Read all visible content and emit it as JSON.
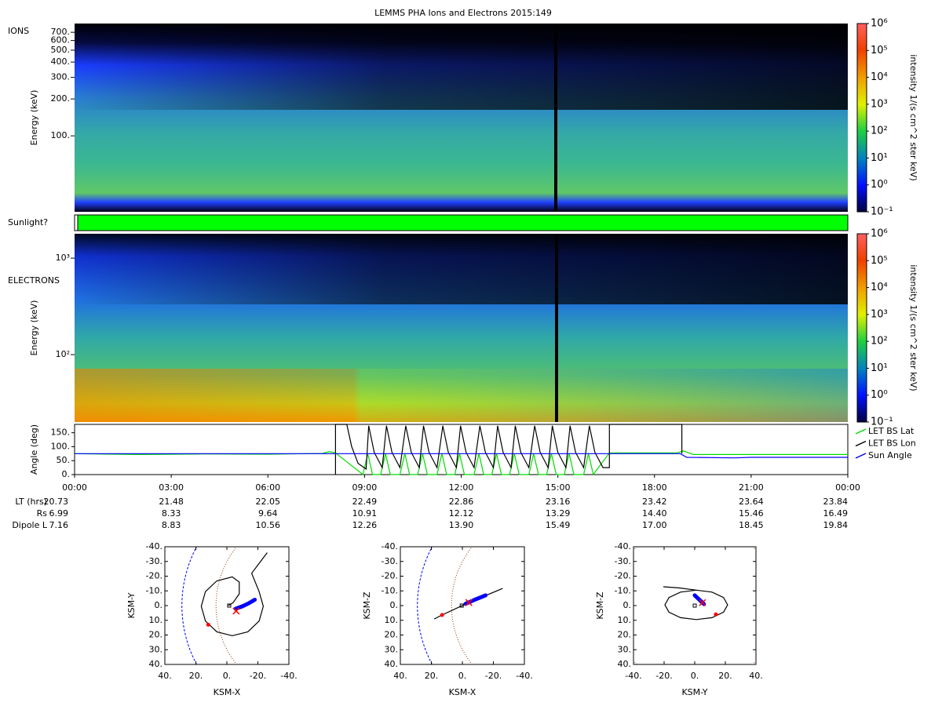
{
  "title": "LEMMS PHA Ions and Electrons  2015:149",
  "chart_data": [
    {
      "type": "spectrogram",
      "label": "IONS",
      "ylabel": "Energy (keV)",
      "log_y": true,
      "ylim": [
        24,
        825
      ],
      "yticks": [
        {
          "value": 100,
          "label": "100."
        },
        {
          "value": 200,
          "label": "200."
        },
        {
          "value": 300,
          "label": "300."
        },
        {
          "value": 400,
          "label": "400."
        },
        {
          "value": 500,
          "label": "500."
        },
        {
          "value": 600,
          "label": "600."
        },
        {
          "value": 700,
          "label": "700."
        }
      ],
      "colorbar": {
        "label": "intensity 1/(s cm^2 ster keV)",
        "log": true,
        "lim": [
          0.1,
          1000000
        ],
        "ticks": [
          {
            "value": 0.1,
            "label": "10⁻¹"
          },
          {
            "value": 1,
            "label": "10⁰"
          },
          {
            "value": 10,
            "label": "10¹"
          },
          {
            "value": 100,
            "label": "10²"
          },
          {
            "value": 1000,
            "label": "10³"
          },
          {
            "value": 10000,
            "label": "10⁴"
          },
          {
            "value": 100000,
            "label": "10⁵"
          },
          {
            "value": 1000000,
            "label": "10⁶"
          }
        ]
      }
    },
    {
      "type": "strip",
      "label": "Sunlight?",
      "color": "#00ff00"
    },
    {
      "type": "spectrogram",
      "label": "ELECTRONS",
      "ylabel": "Energy (keV)",
      "log_y": true,
      "ylim": [
        20,
        1790
      ],
      "yticks": [
        {
          "value": 100,
          "label": "10²"
        },
        {
          "value": 1000,
          "label": "10³"
        }
      ],
      "colorbar": {
        "label": "intensity 1/(s cm^2 ster keV)",
        "log": true,
        "lim": [
          0.1,
          1000000
        ],
        "ticks": [
          {
            "value": 0.1,
            "label": "10⁻¹"
          },
          {
            "value": 1,
            "label": "10⁰"
          },
          {
            "value": 10,
            "label": "10¹"
          },
          {
            "value": 100,
            "label": "10²"
          },
          {
            "value": 1000,
            "label": "10³"
          },
          {
            "value": 10000,
            "label": "10⁴"
          },
          {
            "value": 100000,
            "label": "10⁵"
          },
          {
            "value": 1000000,
            "label": "10⁶"
          }
        ]
      }
    },
    {
      "type": "line",
      "ylabel": "Angle (deg)",
      "xlim": [
        0,
        24
      ],
      "ylim": [
        0,
        180
      ],
      "xticks": [
        {
          "value": 0,
          "label": "00:00"
        },
        {
          "value": 3,
          "label": "03:00"
        },
        {
          "value": 6,
          "label": "06:00"
        },
        {
          "value": 9,
          "label": "09:00"
        },
        {
          "value": 12,
          "label": "12:00"
        },
        {
          "value": 15,
          "label": "15:00"
        },
        {
          "value": 18,
          "label": "18:00"
        },
        {
          "value": 21,
          "label": "21:00"
        },
        {
          "value": 24,
          "label": "00:00"
        }
      ],
      "yticks": [
        {
          "value": 0,
          "label": "0."
        },
        {
          "value": 50,
          "label": "50."
        },
        {
          "value": 100,
          "label": "100."
        },
        {
          "value": 150,
          "label": "150."
        }
      ],
      "legend": "right",
      "series": [
        {
          "name": "LET BS Lat",
          "color": "#00dd00",
          "x": [
            0,
            2,
            4,
            6,
            7.7,
            7.9,
            8.1,
            8.95,
            9.1,
            9.25,
            9.5,
            9.65,
            9.8,
            10.1,
            10.25,
            10.4,
            10.65,
            10.8,
            10.95,
            11.25,
            11.4,
            11.55,
            11.8,
            11.95,
            12.1,
            12.4,
            12.55,
            12.7,
            12.95,
            13.1,
            13.25,
            13.5,
            13.65,
            13.8,
            14.1,
            14.25,
            14.4,
            14.65,
            14.8,
            14.95,
            15.2,
            15.35,
            15.5,
            15.8,
            15.95,
            16.1,
            16.6,
            18.7,
            18.9,
            19.2,
            24
          ],
          "values": [
            75,
            72,
            74,
            73,
            76,
            82,
            78,
            0,
            75,
            0,
            0,
            75,
            0,
            0,
            75,
            0,
            0,
            75,
            0,
            0,
            75,
            0,
            0,
            75,
            0,
            0,
            75,
            0,
            0,
            75,
            0,
            0,
            75,
            0,
            0,
            75,
            0,
            0,
            75,
            0,
            0,
            75,
            0,
            0,
            75,
            0,
            78,
            78,
            85,
            72,
            72
          ]
        },
        {
          "name": "LET BS Lon",
          "color": "#000000",
          "x": [
            8.1,
            8.1,
            8.45,
            8.6,
            8.8,
            9.05,
            9.13,
            9.3,
            9.55,
            9.68,
            9.85,
            10.1,
            10.28,
            10.45,
            10.7,
            10.83,
            11.0,
            11.25,
            11.43,
            11.6,
            11.85,
            11.98,
            12.15,
            12.4,
            12.58,
            12.75,
            13.0,
            13.13,
            13.3,
            13.55,
            13.68,
            13.85,
            14.1,
            14.28,
            14.45,
            14.7,
            14.83,
            15.0,
            15.25,
            15.38,
            15.55,
            15.8,
            15.98,
            16.15,
            16.4,
            16.6,
            16.6,
            18.85,
            18.85
          ],
          "values": [
            0,
            180,
            180,
            100,
            40,
            20,
            175,
            80,
            25,
            175,
            80,
            25,
            175,
            80,
            25,
            175,
            80,
            25,
            175,
            80,
            25,
            175,
            80,
            25,
            175,
            80,
            25,
            175,
            80,
            25,
            175,
            80,
            25,
            175,
            80,
            25,
            175,
            80,
            25,
            175,
            80,
            25,
            175,
            80,
            25,
            25,
            180,
            180,
            75
          ]
        },
        {
          "name": "Sun Angle",
          "color": "#0000ff",
          "x": [
            0,
            8,
            18.8,
            19.0,
            20.5,
            21,
            24
          ],
          "values": [
            75,
            75,
            75,
            62,
            60,
            62,
            62
          ]
        }
      ],
      "rows": [
        {
          "name": "LT (hrs)",
          "values": [
            "20.73",
            "21.48",
            "22.05",
            "22.49",
            "22.86",
            "23.16",
            "23.42",
            "23.64",
            "23.84"
          ]
        },
        {
          "name": "Rs",
          "values": [
            "6.99",
            "8.33",
            "9.64",
            "10.91",
            "12.12",
            "13.29",
            "14.40",
            "15.46",
            "16.49"
          ]
        },
        {
          "name": "Dipole L",
          "values": [
            "7.16",
            "8.83",
            "10.56",
            "12.26",
            "13.90",
            "15.49",
            "17.00",
            "18.45",
            "19.84"
          ]
        }
      ]
    },
    {
      "type": "orbit",
      "xlabel": "KSM-X",
      "ylabel": "KSM-Y",
      "xlim": [
        40,
        -40
      ],
      "ylim": [
        40,
        -40
      ],
      "xticks": [
        {
          "value": 40,
          "label": "40."
        },
        {
          "value": 20,
          "label": "20."
        },
        {
          "value": 0,
          "label": "0."
        },
        {
          "value": -20,
          "label": "-20."
        },
        {
          "value": -40,
          "label": "-40."
        }
      ],
      "yticks": [
        {
          "value": -40,
          "label": "-40."
        },
        {
          "value": -30,
          "label": "-30."
        },
        {
          "value": -20,
          "label": "-20."
        },
        {
          "value": -10,
          "label": "-10."
        },
        {
          "value": 0,
          "label": "0."
        },
        {
          "value": 10,
          "label": "10."
        },
        {
          "value": 20,
          "label": "20."
        },
        {
          "value": 30,
          "label": "30."
        },
        {
          "value": 40,
          "label": "40."
        }
      ],
      "trajectory": {
        "color": "#000000",
        "x": [
          -26,
          -21,
          -16,
          -20.8,
          -23.5,
          -20.8,
          -13.5,
          -3.5,
          6.5,
          13.8,
          16.5,
          13.8,
          6.5,
          -3.5,
          -8,
          -8,
          -4,
          -1
        ],
        "y": [
          -36,
          -29,
          -22,
          -9.5,
          0.5,
          10.5,
          17.8,
          20.5,
          17.8,
          10.5,
          0.5,
          -9.5,
          -16.8,
          -19.5,
          -16,
          -8,
          -2,
          0
        ]
      },
      "highlight": {
        "color": "#0000ff",
        "x": [
          -5.6,
          -10,
          -14,
          -18
        ],
        "y": [
          2.2,
          0.5,
          -1.5,
          -4
        ]
      },
      "start": {
        "color": "#ff0000",
        "x": 12,
        "y": 13
      },
      "position": {
        "color": "#ff0000",
        "x": -6,
        "y": 3.7
      },
      "origin": {
        "x": -1.5,
        "y": 0
      }
    },
    {
      "type": "orbit",
      "xlabel": "KSM-X",
      "ylabel": "KSM-Z",
      "xlim": [
        40,
        -40
      ],
      "ylim": [
        40,
        -40
      ],
      "xticks": [
        {
          "value": 40,
          "label": "40."
        },
        {
          "value": 20,
          "label": "20."
        },
        {
          "value": 0,
          "label": "0."
        },
        {
          "value": -20,
          "label": "-20."
        },
        {
          "value": -40,
          "label": "-40."
        }
      ],
      "yticks": [
        {
          "value": -40,
          "label": "-40."
        },
        {
          "value": -30,
          "label": "-30."
        },
        {
          "value": -20,
          "label": "-20."
        },
        {
          "value": -10,
          "label": "-10."
        },
        {
          "value": 0,
          "label": "0."
        },
        {
          "value": 10,
          "label": "10."
        },
        {
          "value": 20,
          "label": "20."
        },
        {
          "value": 30,
          "label": "30."
        },
        {
          "value": 40,
          "label": "40."
        }
      ],
      "trajectory": {
        "color": "#000000",
        "x": [
          18.2,
          13.1,
          -4.2,
          -26
        ],
        "y": [
          9.1,
          6.4,
          -2.1,
          -11.7
        ]
      },
      "highlight": {
        "color": "#0000ff",
        "x": [
          -2,
          -8,
          -15
        ],
        "y": [
          -1.2,
          -4,
          -7
        ]
      },
      "start": {
        "color": "#ff0000",
        "x": 13.1,
        "y": 6.4
      },
      "position": {
        "color": "#ff0000",
        "x": -4.2,
        "y": -2.1
      },
      "origin": {
        "x": 0.4,
        "y": 0
      }
    },
    {
      "type": "orbit",
      "xlabel": "KSM-Y",
      "ylabel": "KSM-Z",
      "xlim": [
        -40,
        40
      ],
      "ylim": [
        40,
        -40
      ],
      "xticks": [
        {
          "value": -40,
          "label": "-40."
        },
        {
          "value": -20,
          "label": "-20."
        },
        {
          "value": 0,
          "label": "0."
        },
        {
          "value": 20,
          "label": "20."
        },
        {
          "value": 40,
          "label": "40."
        }
      ],
      "yticks": [
        {
          "value": -40,
          "label": "-40."
        },
        {
          "value": -30,
          "label": "-30."
        },
        {
          "value": -20,
          "label": "-20."
        },
        {
          "value": -10,
          "label": "-10."
        },
        {
          "value": 0,
          "label": "0."
        },
        {
          "value": 10,
          "label": "10."
        },
        {
          "value": 20,
          "label": "20."
        },
        {
          "value": 30,
          "label": "30."
        },
        {
          "value": 40,
          "label": "40."
        }
      ],
      "trajectory": {
        "color": "#000000",
        "x": [
          -20.5,
          -10,
          1,
          11.3,
          18.8,
          21.5,
          18.8,
          11.3,
          1,
          -9.3,
          -16.8,
          -19.5,
          -16.8,
          -9.3,
          1
        ],
        "y": [
          -12.8,
          -12,
          -10.5,
          -9.2,
          -5.5,
          -0.5,
          4.5,
          8.2,
          9.5,
          8.2,
          4.5,
          -0.5,
          -5.5,
          -9.2,
          -10.5
        ]
      },
      "highlight": {
        "color": "#0000ff",
        "x": [
          0,
          3,
          6
        ],
        "y": [
          -7,
          -4,
          -1
        ]
      },
      "start": {
        "color": "#ff0000",
        "x": 13.8,
        "y": 6
      },
      "position": {
        "color": "#ff0000",
        "x": 5,
        "y": -2
      },
      "origin": {
        "x": 0,
        "y": 0
      }
    }
  ]
}
